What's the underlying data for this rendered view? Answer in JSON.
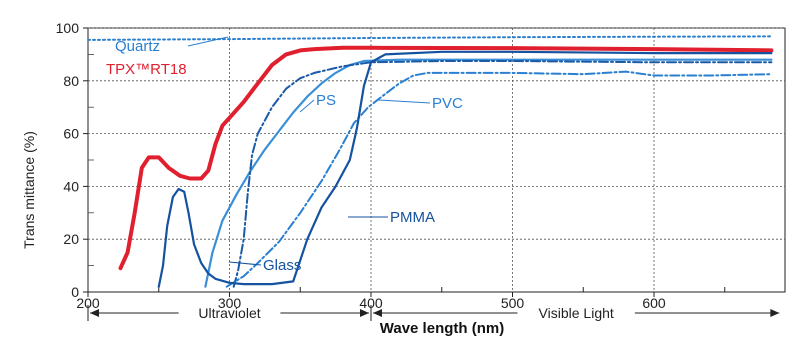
{
  "chart_data": {
    "type": "line",
    "xlabel": "Wave length (nm)",
    "ylabel": "Trans mittance (%)",
    "xlim": [
      200,
      690
    ],
    "ylim": [
      0,
      100
    ],
    "x_ticks": [
      200,
      300,
      400,
      500,
      600
    ],
    "x_tick_labels": [
      "200",
      "300",
      "400",
      "500",
      "600"
    ],
    "y_ticks": [
      0,
      20,
      40,
      60,
      80,
      100
    ],
    "y_tick_labels": [
      "0",
      "20",
      "40",
      "60",
      "80",
      "100"
    ],
    "grid": true,
    "regions": [
      {
        "label": "Ultraviolet",
        "from": 200,
        "to": 400
      },
      {
        "label": "Visible Light",
        "from": 400,
        "to": 690
      }
    ],
    "series": [
      {
        "name": "Quartz",
        "color": "#2a7fd0",
        "style": "dotted",
        "points": [
          [
            200,
            95.5
          ],
          [
            300,
            95.8
          ],
          [
            400,
            96.2
          ],
          [
            500,
            96.5
          ],
          [
            600,
            96.7
          ],
          [
            683,
            96.8
          ]
        ]
      },
      {
        "name": "TPX™RT18",
        "color": "#e0202e",
        "style": "solid",
        "points": [
          [
            223,
            9
          ],
          [
            228,
            15
          ],
          [
            233,
            30
          ],
          [
            238,
            47
          ],
          [
            243,
            51
          ],
          [
            250,
            51
          ],
          [
            257,
            47
          ],
          [
            265,
            44
          ],
          [
            272,
            43
          ],
          [
            280,
            43
          ],
          [
            285,
            46
          ],
          [
            290,
            56
          ],
          [
            295,
            63
          ],
          [
            300,
            66
          ],
          [
            310,
            72
          ],
          [
            320,
            79
          ],
          [
            330,
            86
          ],
          [
            340,
            90
          ],
          [
            350,
            91.5
          ],
          [
            360,
            92
          ],
          [
            380,
            92.5
          ],
          [
            400,
            92.5
          ],
          [
            500,
            92.4
          ],
          [
            600,
            92
          ],
          [
            683,
            91.5
          ]
        ]
      },
      {
        "name": "PS",
        "color": "#3a8fd8",
        "style": "solid",
        "points": [
          [
            283,
            2
          ],
          [
            288,
            15
          ],
          [
            295,
            27
          ],
          [
            305,
            37
          ],
          [
            315,
            46
          ],
          [
            325,
            54
          ],
          [
            335,
            61
          ],
          [
            345,
            68
          ],
          [
            355,
            74
          ],
          [
            365,
            79
          ],
          [
            375,
            83
          ],
          [
            385,
            86
          ],
          [
            395,
            87.5
          ],
          [
            420,
            88
          ],
          [
            500,
            88
          ],
          [
            600,
            88
          ],
          [
            683,
            88
          ]
        ]
      },
      {
        "name": "Glass",
        "color": "#1a5aa6",
        "style": "dashdot",
        "points": [
          [
            303,
            2
          ],
          [
            306,
            8
          ],
          [
            310,
            20
          ],
          [
            313,
            38
          ],
          [
            316,
            52
          ],
          [
            320,
            60
          ],
          [
            325,
            65
          ],
          [
            330,
            70
          ],
          [
            340,
            77
          ],
          [
            350,
            81
          ],
          [
            360,
            83
          ],
          [
            380,
            85.5
          ],
          [
            400,
            87
          ],
          [
            450,
            87.5
          ],
          [
            500,
            87.5
          ],
          [
            600,
            87
          ],
          [
            683,
            87
          ]
        ]
      },
      {
        "name": "PVC",
        "color": "#2a7fd0",
        "style": "dashdot",
        "points": [
          [
            298,
            2
          ],
          [
            310,
            6
          ],
          [
            320,
            11
          ],
          [
            335,
            19
          ],
          [
            350,
            30
          ],
          [
            365,
            42
          ],
          [
            378,
            54
          ],
          [
            388,
            64
          ],
          [
            398,
            70
          ],
          [
            410,
            75
          ],
          [
            420,
            79
          ],
          [
            430,
            82
          ],
          [
            440,
            83
          ],
          [
            500,
            83
          ],
          [
            550,
            82.5
          ],
          [
            580,
            83.5
          ],
          [
            600,
            82
          ],
          [
            640,
            82
          ],
          [
            683,
            82.5
          ]
        ]
      },
      {
        "name": "PMMA",
        "color": "#1552a0",
        "style": "solid",
        "points": [
          [
            250,
            2
          ],
          [
            253,
            10
          ],
          [
            256,
            25
          ],
          [
            260,
            36
          ],
          [
            264,
            39
          ],
          [
            268,
            38
          ],
          [
            271,
            30
          ],
          [
            275,
            18
          ],
          [
            280,
            11
          ],
          [
            285,
            7
          ],
          [
            290,
            5
          ],
          [
            300,
            3.5
          ],
          [
            310,
            3
          ],
          [
            330,
            3
          ],
          [
            345,
            4
          ],
          [
            355,
            20
          ],
          [
            365,
            32
          ],
          [
            375,
            40
          ],
          [
            385,
            50
          ],
          [
            390,
            62
          ],
          [
            395,
            78
          ],
          [
            400,
            87
          ],
          [
            410,
            90
          ],
          [
            450,
            91
          ],
          [
            500,
            91
          ],
          [
            600,
            90.5
          ],
          [
            683,
            90.5
          ]
        ]
      }
    ],
    "series_labels": [
      {
        "text": "Quartz",
        "series": "Quartz",
        "color": "#2a7fd0"
      },
      {
        "text": "TPX™RT18",
        "series": "TPX™RT18",
        "color": "#e0202e"
      },
      {
        "text": "PS",
        "series": "PS",
        "color": "#2a7fd0"
      },
      {
        "text": "PVC",
        "series": "PVC",
        "color": "#2a7fd0"
      },
      {
        "text": "Glass",
        "series": "Glass",
        "color": "#1552a0"
      },
      {
        "text": "PMMA",
        "series": "PMMA",
        "color": "#1552a0"
      }
    ]
  }
}
